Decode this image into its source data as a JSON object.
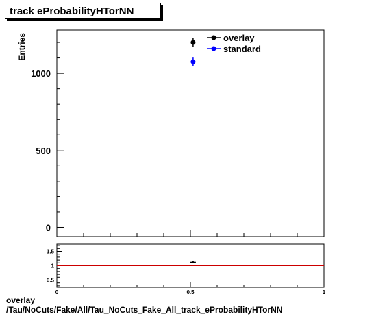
{
  "title": "track eProbabilityHTorNN",
  "footer": {
    "line1": "overlay",
    "line2": "/Tau/NoCuts/Fake/All/Tau_NoCuts_Fake_All_track_eProbabilityHTorNN"
  },
  "chart_data": [
    {
      "type": "scatter",
      "ylabel": "Entries",
      "xlim": [
        0,
        1
      ],
      "ylim": [
        -60,
        1280
      ],
      "yticks": [
        0,
        500,
        1000
      ],
      "legend": {
        "placement": "top-right",
        "entries": [
          "overlay",
          "standard"
        ]
      },
      "series": [
        {
          "name": "overlay",
          "color": "#000000",
          "points": [
            {
              "x": 0.51,
              "y": 1200,
              "err": 28
            }
          ]
        },
        {
          "name": "standard",
          "color": "#0000ff",
          "points": [
            {
              "x": 0.51,
              "y": 1075,
              "err": 27
            }
          ]
        }
      ]
    },
    {
      "type": "scatter",
      "xlabel": "track eProbabilityHTorNN",
      "xlim": [
        0,
        1
      ],
      "ylim": [
        0.25,
        1.75
      ],
      "xticks": [
        0,
        0.5,
        1
      ],
      "yticks": [
        0.5,
        1,
        1.5
      ],
      "reference_line": {
        "y": 1,
        "color": "#cc0000"
      },
      "series": [
        {
          "color": "#000000",
          "points": [
            {
              "x": 0.51,
              "y": 1.12,
              "err": 0.03
            }
          ]
        }
      ]
    }
  ]
}
